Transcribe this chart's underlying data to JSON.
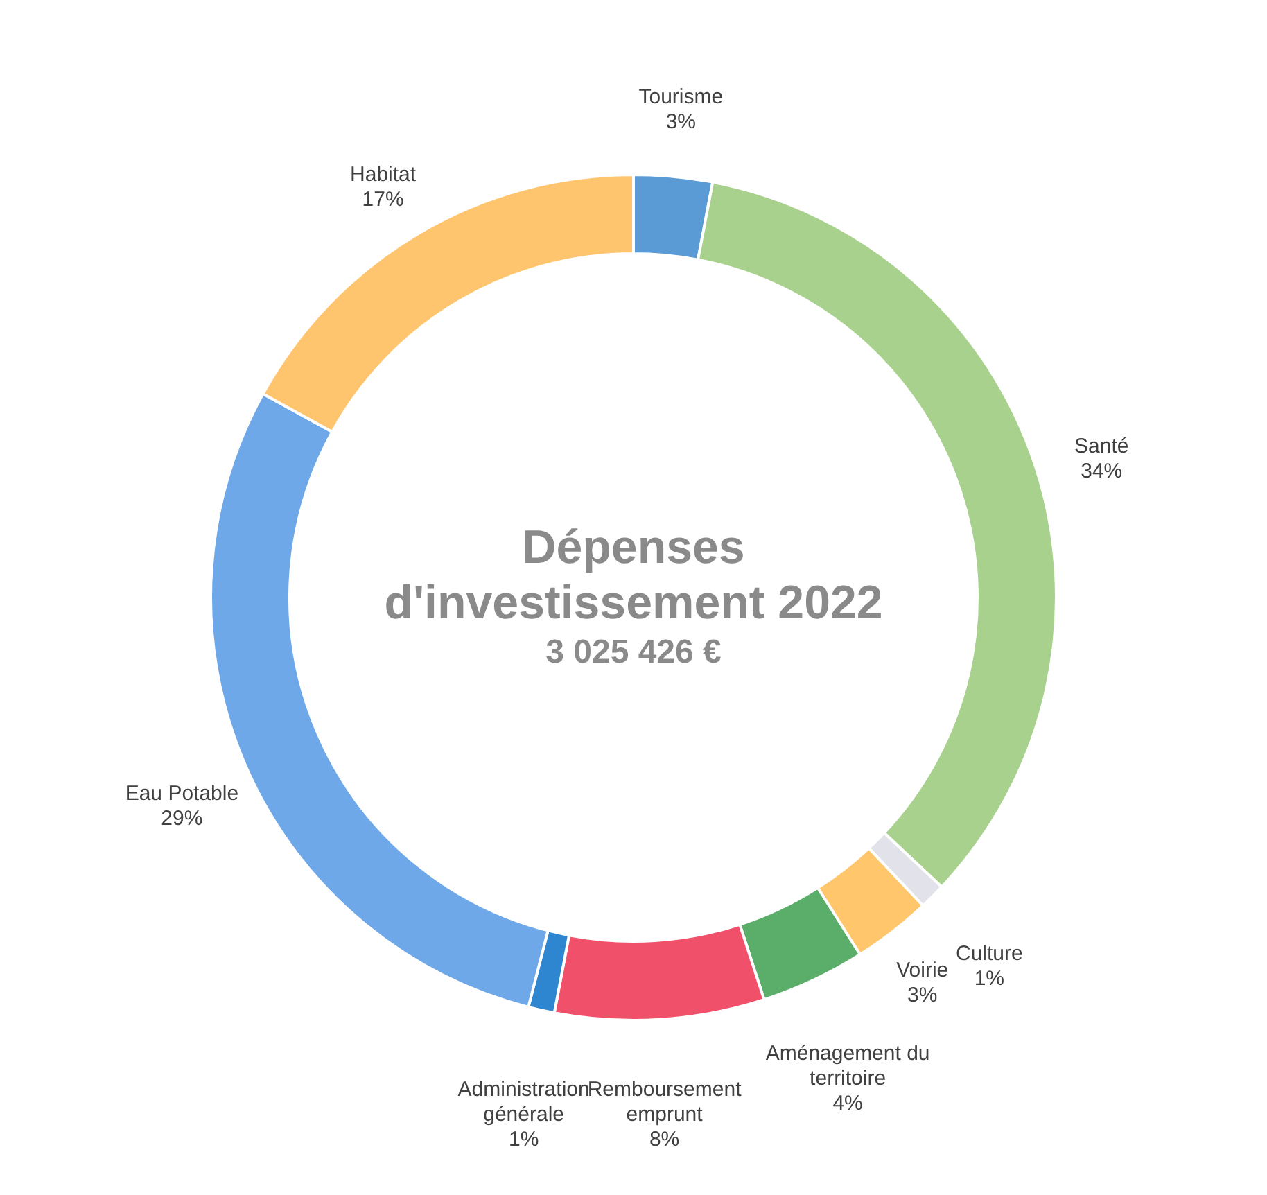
{
  "chart_data": {
    "type": "donut",
    "title": "Dépenses d'investissement 2022",
    "subtitle": "3 025 426 €",
    "categories": [
      "Tourisme",
      "Santé",
      "Culture",
      "Voirie",
      "Aménagement du territoire",
      "Remboursement emprunt",
      "Administration générale",
      "Eau Potable",
      "Habitat"
    ],
    "values": [
      3,
      34,
      1,
      3,
      4,
      8,
      1,
      29,
      17
    ],
    "value_labels": [
      "3%",
      "34%",
      "1%",
      "3%",
      "4%",
      "8%",
      "1%",
      "29%",
      "17%"
    ],
    "colors": [
      "#5b9bd5",
      "#a9d18e",
      "#e2e2ea",
      "#ffc66b",
      "#5aae6a",
      "#f0506a",
      "#2e86d0",
      "#6fa8e8",
      "#ffc56e"
    ],
    "legend": false
  }
}
